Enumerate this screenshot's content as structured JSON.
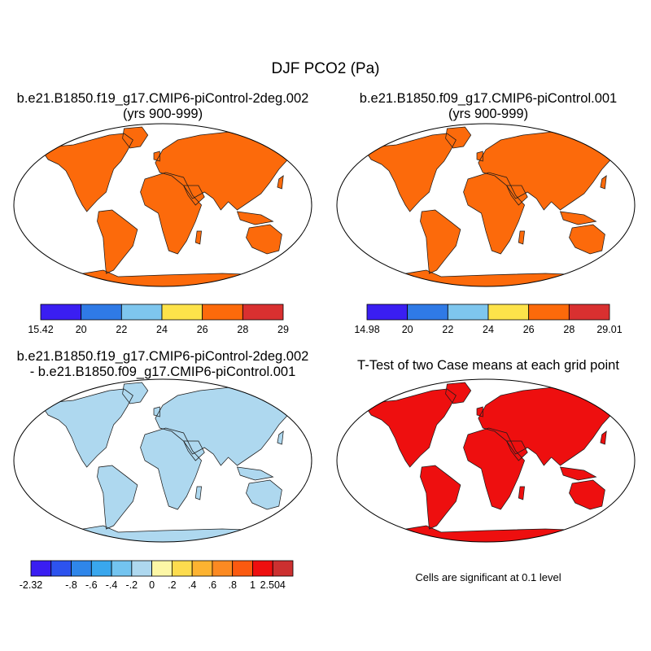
{
  "figure": {
    "title": "DJF PCO2 (Pa)",
    "panels": [
      {
        "title": "b.e21.B1850.f19_g17.CMIP6-piControl-2deg.002",
        "subtitle": "(yrs 900-999)"
      },
      {
        "title": "b.e21.B1850.f09_g17.CMIP6-piControl.001",
        "subtitle": "(yrs 900-999)"
      },
      {
        "title": "b.e21.B1850.f19_g17.CMIP6-piControl-2deg.002",
        "subtitle": "- b.e21.B1850.f09_g17.CMIP6-piControl.001"
      },
      {
        "title": "T-Test of two Case means at each grid point",
        "subtitle": ""
      }
    ],
    "note": "Cells are significant at 0.1 level"
  },
  "colorbars": [
    {
      "colors": [
        "#3a1ef2",
        "#2f7ae6",
        "#7ec6ee",
        "#fde34a",
        "#fc6a0b",
        "#d93030"
      ],
      "labels": [
        "15.42",
        "20",
        "22",
        "24",
        "26",
        "28",
        "29"
      ]
    },
    {
      "colors": [
        "#3a1ef2",
        "#2f7ae6",
        "#7ec6ee",
        "#fde34a",
        "#fc6a0b",
        "#d93030"
      ],
      "labels": [
        "14.98",
        "20",
        "22",
        "24",
        "26",
        "28",
        "29.01"
      ]
    },
    {
      "colors": [
        "#3a1ef2",
        "#2d53ee",
        "#2f86ea",
        "#39a7ee",
        "#73c4f0",
        "#aed8ef",
        "#fdf7a6",
        "#fddc4e",
        "#fdb331",
        "#fc8a22",
        "#fb5a10",
        "#ee0f0f",
        "#cc3030"
      ],
      "labels": [
        "-2.32",
        "",
        "-.8",
        "-.6",
        "-.4",
        "-.2",
        "0",
        ".2",
        ".4",
        ".6",
        ".8",
        "1",
        "2.504"
      ]
    }
  ],
  "map_colors": {
    "abs_base": "#fc6a0b",
    "abs_high": "#d93030",
    "abs_mid": "#fde34a",
    "abs_low": "#7ec6ee",
    "abs_lower": "#2f7ae6",
    "abs_min": "#3a1ef2",
    "diff_base": "#aed8ef",
    "ttest_fill": "#ee0f0f"
  }
}
